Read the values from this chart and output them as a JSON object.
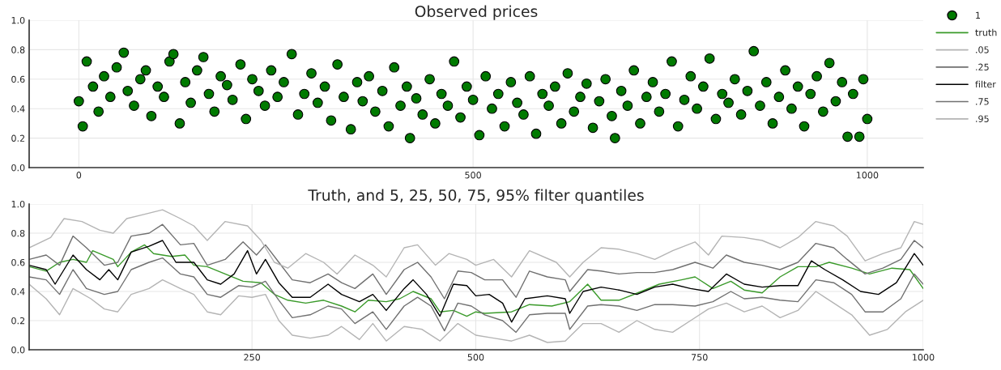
{
  "chart_data": [
    {
      "type": "scatter",
      "title": "Observed prices",
      "xlim": [
        -63,
        1071
      ],
      "xticks": [
        0,
        500,
        1000
      ],
      "ylim": [
        0,
        1
      ],
      "yticks": [
        {
          "value": 0,
          "label": "0.0"
        },
        {
          "value": 0.2,
          "label": "0.2"
        },
        {
          "value": 0.4,
          "label": "0.4"
        },
        {
          "value": 0.6,
          "label": "0.6"
        },
        {
          "value": 0.8,
          "label": "0.8"
        },
        {
          "value": 1,
          "label": "1.0"
        }
      ],
      "grid": true,
      "legend": "right",
      "marker": "circle",
      "series": [
        {
          "name": "1",
          "color": "#007a00",
          "x": [
            0,
            5,
            10,
            18,
            25,
            32,
            40,
            48,
            57,
            62,
            70,
            78,
            85,
            92,
            100,
            108,
            115,
            120,
            128,
            135,
            142,
            150,
            158,
            165,
            172,
            180,
            188,
            195,
            205,
            212,
            220,
            228,
            236,
            244,
            252,
            260,
            270,
            278,
            286,
            295,
            303,
            312,
            320,
            328,
            336,
            345,
            353,
            360,
            368,
            376,
            385,
            393,
            400,
            408,
            416,
            420,
            428,
            436,
            445,
            452,
            460,
            468,
            476,
            484,
            492,
            500,
            508,
            516,
            524,
            532,
            540,
            548,
            556,
            564,
            572,
            580,
            588,
            596,
            604,
            612,
            620,
            628,
            636,
            644,
            652,
            660,
            668,
            676,
            680,
            688,
            696,
            704,
            712,
            720,
            728,
            736,
            744,
            752,
            760,
            768,
            776,
            784,
            792,
            800,
            808,
            816,
            824,
            832,
            840,
            848,
            856,
            864,
            872,
            880,
            888,
            896,
            904,
            912,
            920,
            928,
            936,
            944,
            952,
            960,
            968,
            975,
            982,
            990,
            995,
            1000
          ],
          "values": [
            0.45,
            0.28,
            0.72,
            0.55,
            0.38,
            0.62,
            0.48,
            0.68,
            0.78,
            0.52,
            0.42,
            0.6,
            0.66,
            0.35,
            0.55,
            0.48,
            0.72,
            0.77,
            0.3,
            0.58,
            0.44,
            0.66,
            0.75,
            0.5,
            0.38,
            0.62,
            0.56,
            0.46,
            0.7,
            0.33,
            0.6,
            0.52,
            0.42,
            0.66,
            0.48,
            0.58,
            0.77,
            0.36,
            0.5,
            0.64,
            0.44,
            0.55,
            0.32,
            0.7,
            0.48,
            0.26,
            0.58,
            0.45,
            0.62,
            0.38,
            0.52,
            0.28,
            0.68,
            0.42,
            0.55,
            0.2,
            0.47,
            0.36,
            0.6,
            0.3,
            0.5,
            0.42,
            0.72,
            0.34,
            0.55,
            0.46,
            0.22,
            0.62,
            0.4,
            0.5,
            0.28,
            0.58,
            0.44,
            0.36,
            0.62,
            0.23,
            0.5,
            0.42,
            0.55,
            0.3,
            0.64,
            0.38,
            0.48,
            0.57,
            0.27,
            0.45,
            0.6,
            0.35,
            0.2,
            0.52,
            0.42,
            0.66,
            0.3,
            0.48,
            0.58,
            0.38,
            0.5,
            0.72,
            0.28,
            0.46,
            0.62,
            0.4,
            0.55,
            0.74,
            0.33,
            0.5,
            0.44,
            0.6,
            0.36,
            0.52,
            0.79,
            0.42,
            0.58,
            0.3,
            0.48,
            0.66,
            0.4,
            0.55,
            0.28,
            0.5,
            0.62,
            0.38,
            0.71,
            0.45,
            0.58,
            0.21,
            0.5,
            0.21,
            0.6,
            0.33
          ]
        }
      ]
    },
    {
      "type": "line",
      "title": "Truth, and 5, 25, 50, 75, 95% filter quantiles",
      "xlim": [
        1,
        1000
      ],
      "xticks": [
        250,
        500,
        750,
        1000
      ],
      "ylim": [
        0,
        1
      ],
      "yticks": [
        {
          "value": 0,
          "label": "0.0"
        },
        {
          "value": 0.2,
          "label": "0.2"
        },
        {
          "value": 0.4,
          "label": "0.4"
        },
        {
          "value": 0.6,
          "label": "0.6"
        },
        {
          "value": 0.8,
          "label": "0.8"
        },
        {
          "value": 1,
          "label": "1.0"
        }
      ],
      "grid": true,
      "legend": "right",
      "marker": "none",
      "line_style": "solid",
      "series": [
        {
          "name": "truth",
          "color": "#3a9a2a",
          "x": [
            1,
            20,
            35,
            50,
            65,
            72,
            95,
            100,
            115,
            130,
            140,
            160,
            175,
            185,
            200,
            220,
            240,
            260,
            275,
            290,
            310,
            330,
            350,
            365,
            380,
            400,
            415,
            430,
            450,
            460,
            475,
            490,
            500,
            510,
            540,
            560,
            585,
            605,
            625,
            640,
            660,
            685,
            705,
            730,
            745,
            765,
            785,
            800,
            820,
            840,
            860,
            880,
            895,
            920,
            940,
            965,
            985,
            1000
          ],
          "values": [
            0.57,
            0.54,
            0.6,
            0.62,
            0.6,
            0.68,
            0.62,
            0.57,
            0.67,
            0.72,
            0.66,
            0.64,
            0.65,
            0.58,
            0.57,
            0.52,
            0.47,
            0.46,
            0.38,
            0.34,
            0.32,
            0.34,
            0.3,
            0.26,
            0.34,
            0.33,
            0.35,
            0.4,
            0.35,
            0.26,
            0.27,
            0.23,
            0.26,
            0.25,
            0.26,
            0.31,
            0.3,
            0.33,
            0.45,
            0.34,
            0.34,
            0.4,
            0.45,
            0.48,
            0.5,
            0.42,
            0.47,
            0.41,
            0.39,
            0.5,
            0.57,
            0.57,
            0.6,
            0.56,
            0.52,
            0.56,
            0.55,
            0.42
          ]
        },
        {
          "name": ".05",
          "color": "#b4b4b4",
          "x": [
            1,
            20,
            35,
            50,
            70,
            85,
            100,
            115,
            135,
            150,
            170,
            185,
            200,
            215,
            235,
            250,
            265,
            280,
            295,
            315,
            335,
            350,
            370,
            385,
            400,
            420,
            440,
            460,
            480,
            500,
            520,
            540,
            560,
            580,
            600,
            620,
            640,
            660,
            680,
            700,
            720,
            740,
            760,
            780,
            800,
            820,
            840,
            860,
            880,
            900,
            920,
            940,
            960,
            980,
            1000
          ],
          "values": [
            0.45,
            0.35,
            0.24,
            0.42,
            0.35,
            0.28,
            0.26,
            0.38,
            0.42,
            0.48,
            0.42,
            0.38,
            0.26,
            0.24,
            0.37,
            0.36,
            0.38,
            0.2,
            0.1,
            0.08,
            0.1,
            0.16,
            0.07,
            0.18,
            0.06,
            0.16,
            0.14,
            0.06,
            0.18,
            0.1,
            0.08,
            0.06,
            0.1,
            0.05,
            0.06,
            0.18,
            0.18,
            0.12,
            0.2,
            0.14,
            0.12,
            0.2,
            0.28,
            0.32,
            0.26,
            0.3,
            0.22,
            0.27,
            0.4,
            0.32,
            0.24,
            0.1,
            0.14,
            0.26,
            0.34
          ]
        },
        {
          "name": ".25",
          "color": "#707070",
          "x": [
            1,
            20,
            35,
            50,
            65,
            85,
            100,
            115,
            135,
            150,
            170,
            185,
            200,
            215,
            235,
            250,
            265,
            280,
            295,
            315,
            335,
            350,
            365,
            385,
            400,
            420,
            435,
            450,
            465,
            480,
            495,
            510,
            530,
            545,
            560,
            580,
            600,
            605,
            625,
            640,
            660,
            680,
            700,
            720,
            745,
            765,
            785,
            800,
            820,
            840,
            860,
            880,
            900,
            920,
            935,
            955,
            975,
            990,
            1000
          ],
          "values": [
            0.5,
            0.48,
            0.38,
            0.55,
            0.42,
            0.38,
            0.4,
            0.55,
            0.6,
            0.63,
            0.52,
            0.5,
            0.38,
            0.36,
            0.44,
            0.43,
            0.47,
            0.34,
            0.22,
            0.24,
            0.3,
            0.28,
            0.18,
            0.26,
            0.14,
            0.3,
            0.36,
            0.3,
            0.13,
            0.32,
            0.3,
            0.24,
            0.2,
            0.12,
            0.24,
            0.25,
            0.25,
            0.14,
            0.3,
            0.31,
            0.3,
            0.27,
            0.31,
            0.31,
            0.3,
            0.33,
            0.4,
            0.35,
            0.36,
            0.34,
            0.33,
            0.48,
            0.46,
            0.38,
            0.26,
            0.26,
            0.35,
            0.52,
            0.45
          ]
        },
        {
          "name": "filter",
          "color": "#000000",
          "x": [
            1,
            20,
            30,
            50,
            65,
            80,
            90,
            100,
            115,
            135,
            150,
            165,
            185,
            200,
            215,
            230,
            245,
            255,
            265,
            280,
            295,
            315,
            335,
            350,
            370,
            385,
            400,
            420,
            430,
            445,
            460,
            475,
            490,
            500,
            515,
            530,
            540,
            555,
            580,
            600,
            605,
            620,
            640,
            660,
            680,
            700,
            720,
            740,
            760,
            780,
            800,
            820,
            840,
            860,
            875,
            890,
            910,
            930,
            950,
            970,
            990,
            1000
          ],
          "values": [
            0.58,
            0.55,
            0.45,
            0.65,
            0.55,
            0.48,
            0.55,
            0.48,
            0.67,
            0.71,
            0.75,
            0.6,
            0.6,
            0.48,
            0.45,
            0.52,
            0.68,
            0.52,
            0.62,
            0.46,
            0.36,
            0.36,
            0.45,
            0.38,
            0.33,
            0.38,
            0.27,
            0.42,
            0.48,
            0.38,
            0.23,
            0.45,
            0.44,
            0.37,
            0.38,
            0.32,
            0.19,
            0.35,
            0.37,
            0.35,
            0.25,
            0.4,
            0.43,
            0.41,
            0.38,
            0.43,
            0.45,
            0.42,
            0.4,
            0.52,
            0.45,
            0.43,
            0.44,
            0.44,
            0.61,
            0.55,
            0.48,
            0.4,
            0.38,
            0.46,
            0.66,
            0.58
          ]
        },
        {
          "name": ".75",
          "color": "#707070",
          "x": [
            1,
            20,
            35,
            50,
            65,
            85,
            100,
            115,
            135,
            150,
            170,
            185,
            200,
            220,
            240,
            255,
            265,
            280,
            295,
            315,
            335,
            350,
            365,
            385,
            400,
            420,
            435,
            450,
            465,
            480,
            495,
            510,
            530,
            545,
            560,
            580,
            600,
            605,
            625,
            640,
            660,
            680,
            700,
            720,
            745,
            765,
            780,
            800,
            820,
            840,
            860,
            880,
            900,
            915,
            935,
            955,
            975,
            990,
            1000
          ],
          "values": [
            0.62,
            0.65,
            0.58,
            0.78,
            0.7,
            0.58,
            0.6,
            0.78,
            0.8,
            0.86,
            0.72,
            0.73,
            0.58,
            0.62,
            0.74,
            0.65,
            0.72,
            0.6,
            0.48,
            0.46,
            0.52,
            0.46,
            0.42,
            0.52,
            0.38,
            0.55,
            0.6,
            0.5,
            0.35,
            0.54,
            0.53,
            0.48,
            0.48,
            0.36,
            0.54,
            0.5,
            0.48,
            0.4,
            0.55,
            0.54,
            0.52,
            0.53,
            0.53,
            0.55,
            0.6,
            0.56,
            0.65,
            0.6,
            0.58,
            0.55,
            0.6,
            0.73,
            0.7,
            0.62,
            0.52,
            0.56,
            0.62,
            0.75,
            0.7
          ]
        },
        {
          "name": ".95",
          "color": "#b4b4b4",
          "x": [
            1,
            25,
            40,
            60,
            80,
            95,
            110,
            130,
            150,
            170,
            185,
            200,
            220,
            245,
            260,
            275,
            290,
            310,
            330,
            345,
            365,
            385,
            400,
            420,
            435,
            455,
            470,
            490,
            500,
            520,
            540,
            560,
            590,
            605,
            620,
            640,
            660,
            680,
            700,
            720,
            745,
            760,
            775,
            800,
            820,
            840,
            860,
            880,
            900,
            915,
            935,
            955,
            975,
            990,
            1000
          ],
          "values": [
            0.7,
            0.77,
            0.9,
            0.88,
            0.82,
            0.8,
            0.9,
            0.93,
            0.96,
            0.9,
            0.85,
            0.75,
            0.88,
            0.85,
            0.75,
            0.6,
            0.56,
            0.66,
            0.6,
            0.52,
            0.65,
            0.58,
            0.5,
            0.7,
            0.72,
            0.58,
            0.66,
            0.62,
            0.58,
            0.62,
            0.5,
            0.68,
            0.6,
            0.5,
            0.6,
            0.7,
            0.69,
            0.66,
            0.62,
            0.68,
            0.74,
            0.65,
            0.78,
            0.77,
            0.75,
            0.7,
            0.77,
            0.88,
            0.85,
            0.78,
            0.61,
            0.66,
            0.7,
            0.88,
            0.86
          ]
        }
      ]
    }
  ]
}
